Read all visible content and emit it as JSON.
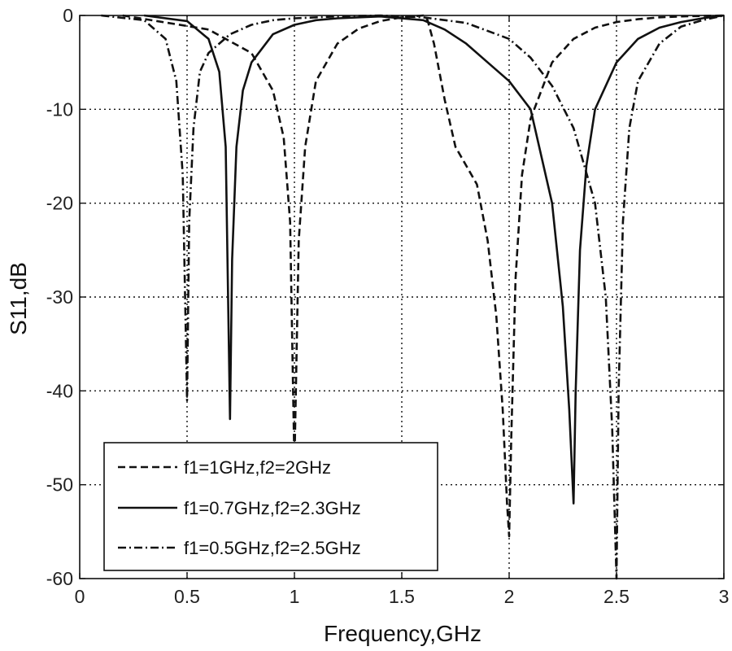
{
  "chart_data": {
    "type": "line",
    "title": "",
    "xlabel": "Frequency,GHz",
    "ylabel": "S11,dB",
    "xlim": [
      0,
      3
    ],
    "ylim": [
      -60,
      0
    ],
    "xticks": [
      0,
      0.5,
      1,
      1.5,
      2,
      2.5,
      3
    ],
    "xtick_labels": [
      "0",
      "0.5",
      "1",
      "1.5",
      "2",
      "2.5",
      "3"
    ],
    "yticks": [
      0,
      -10,
      -20,
      -30,
      -40,
      -50,
      -60
    ],
    "ytick_labels": [
      "0",
      "-10",
      "-20",
      "-30",
      "-40",
      "-50",
      "-60"
    ],
    "grid": true,
    "legend_position": "bottom-left",
    "series": [
      {
        "name": "f1=1GHz,f2=2GHz",
        "line_style": "dashed",
        "color": "#111111",
        "x": [
          0.2,
          0.6,
          0.8,
          0.9,
          0.95,
          0.98,
          1.0,
          1.02,
          1.05,
          1.1,
          1.2,
          1.3,
          1.4,
          1.5,
          1.6,
          1.62,
          1.65,
          1.7,
          1.75,
          1.8,
          1.85,
          1.9,
          1.94,
          1.97,
          1.99,
          2.0,
          2.01,
          2.03,
          2.06,
          2.1,
          2.2,
          2.3,
          2.4,
          2.5,
          2.6,
          2.7,
          2.8,
          2.9,
          3.0
        ],
        "y": [
          0,
          -1.5,
          -4,
          -8,
          -13,
          -22,
          -48,
          -24,
          -14,
          -7,
          -3,
          -1.4,
          -0.6,
          -0.2,
          0,
          -0.5,
          -3,
          -9,
          -14,
          -16,
          -18,
          -24,
          -32,
          -42,
          -52,
          -55.5,
          -45,
          -28,
          -17,
          -11,
          -5,
          -2.5,
          -1.3,
          -0.7,
          -0.4,
          -0.2,
          -0.1,
          -0.05,
          0
        ]
      },
      {
        "name": "f1=0.7GHz,f2=2.3GHz",
        "line_style": "solid",
        "color": "#111111",
        "x": [
          0.3,
          0.5,
          0.6,
          0.65,
          0.68,
          0.7,
          0.71,
          0.73,
          0.76,
          0.8,
          0.9,
          1.0,
          1.1,
          1.2,
          1.4,
          1.6,
          1.7,
          1.8,
          1.9,
          2.0,
          2.1,
          2.2,
          2.25,
          2.28,
          2.3,
          2.31,
          2.33,
          2.36,
          2.4,
          2.5,
          2.6,
          2.7,
          2.8,
          2.9,
          3.0
        ],
        "y": [
          0,
          -0.6,
          -2.5,
          -6,
          -14,
          -43,
          -26,
          -14,
          -8,
          -5,
          -2,
          -1,
          -0.5,
          -0.3,
          -0.1,
          -0.5,
          -1.5,
          -3,
          -5,
          -7,
          -10,
          -20,
          -31,
          -42,
          -52,
          -40,
          -25,
          -16,
          -10,
          -5,
          -2.5,
          -1.3,
          -0.7,
          -0.3,
          0
        ]
      },
      {
        "name": "f1=0.5GHz,f2=2.5GHz",
        "line_style": "dashdot",
        "color": "#111111",
        "x": [
          0.1,
          0.3,
          0.4,
          0.45,
          0.48,
          0.5,
          0.51,
          0.53,
          0.56,
          0.6,
          0.7,
          0.8,
          0.9,
          1.0,
          1.2,
          1.4,
          1.6,
          1.8,
          2.0,
          2.1,
          2.2,
          2.3,
          2.4,
          2.45,
          2.48,
          2.5,
          2.51,
          2.53,
          2.56,
          2.6,
          2.7,
          2.8,
          2.9,
          3.0
        ],
        "y": [
          0,
          -0.5,
          -2.5,
          -7,
          -17,
          -41,
          -22,
          -12,
          -6,
          -4,
          -2,
          -1,
          -0.5,
          -0.3,
          -0.1,
          0,
          -0.2,
          -0.8,
          -2.5,
          -4.5,
          -7.5,
          -12,
          -20,
          -30,
          -44,
          -60,
          -40,
          -22,
          -12,
          -7,
          -3,
          -1.2,
          -0.5,
          0
        ]
      }
    ]
  }
}
